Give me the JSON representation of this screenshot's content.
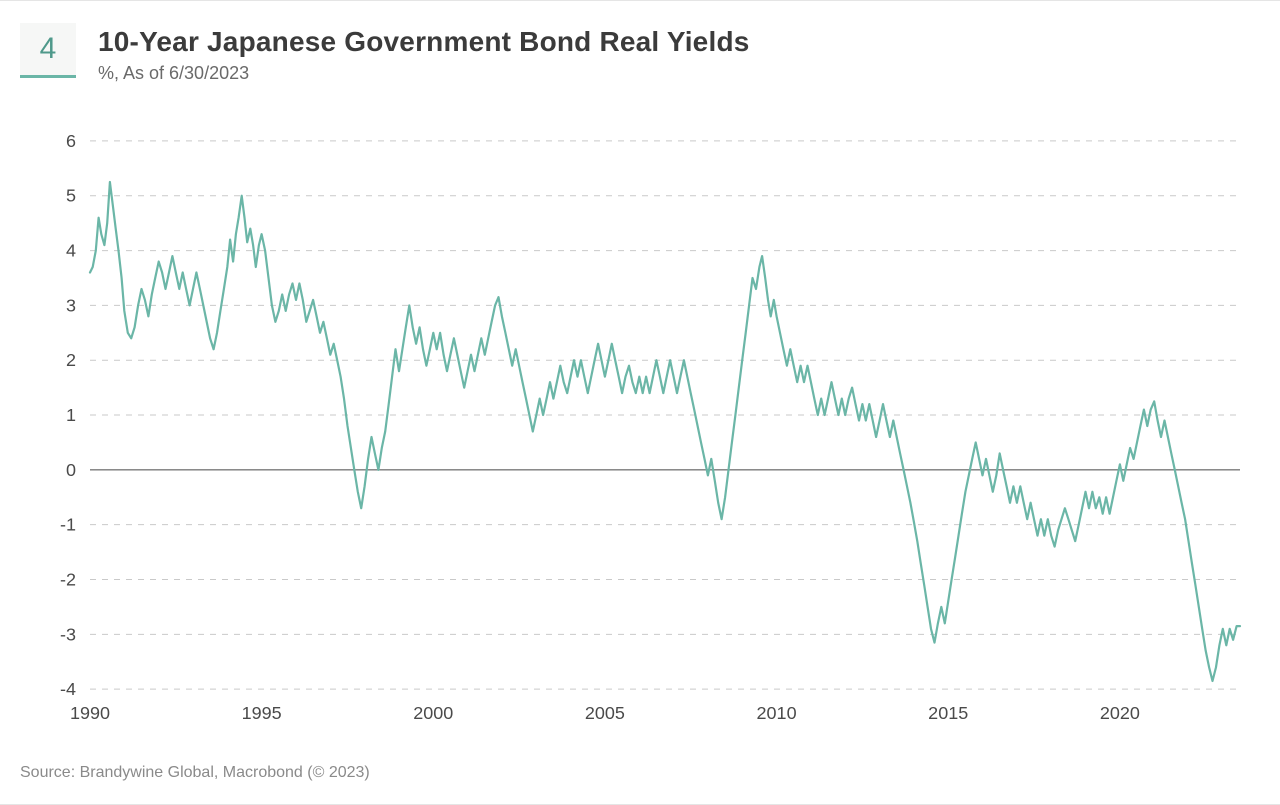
{
  "header": {
    "badge_number": "4",
    "title": "10-Year Japanese Government Bond Real Yields",
    "subtitle": "%, As of 6/30/2023"
  },
  "source": "Source: Brandywine Global, Macrobond (© 2023)",
  "chart": {
    "type": "line",
    "background_color": "#ffffff",
    "grid_color": "#c9c9c9",
    "zero_line_color": "#7a7a7a",
    "line_color": "#6bb6a7",
    "line_width": 2.2,
    "axis_label_color": "#4a4a4a",
    "axis_label_fontsize": 18,
    "xlim": [
      1990,
      2023.5
    ],
    "ylim": [
      -4,
      6
    ],
    "xticks": [
      1990,
      1995,
      2000,
      2005,
      2010,
      2015,
      2020
    ],
    "yticks": [
      -4,
      -3,
      -2,
      -1,
      0,
      1,
      2,
      3,
      4,
      5,
      6
    ],
    "series": [
      {
        "x": 1990.0,
        "y": 3.6
      },
      {
        "x": 1990.08,
        "y": 3.7
      },
      {
        "x": 1990.17,
        "y": 4.0
      },
      {
        "x": 1990.25,
        "y": 4.6
      },
      {
        "x": 1990.33,
        "y": 4.3
      },
      {
        "x": 1990.42,
        "y": 4.1
      },
      {
        "x": 1990.5,
        "y": 4.5
      },
      {
        "x": 1990.58,
        "y": 5.25
      },
      {
        "x": 1990.67,
        "y": 4.8
      },
      {
        "x": 1990.75,
        "y": 4.4
      },
      {
        "x": 1990.83,
        "y": 4.0
      },
      {
        "x": 1990.92,
        "y": 3.5
      },
      {
        "x": 1991.0,
        "y": 2.9
      },
      {
        "x": 1991.1,
        "y": 2.5
      },
      {
        "x": 1991.2,
        "y": 2.4
      },
      {
        "x": 1991.3,
        "y": 2.6
      },
      {
        "x": 1991.4,
        "y": 3.0
      },
      {
        "x": 1991.5,
        "y": 3.3
      },
      {
        "x": 1991.6,
        "y": 3.1
      },
      {
        "x": 1991.7,
        "y": 2.8
      },
      {
        "x": 1991.8,
        "y": 3.2
      },
      {
        "x": 1991.9,
        "y": 3.5
      },
      {
        "x": 1992.0,
        "y": 3.8
      },
      {
        "x": 1992.1,
        "y": 3.6
      },
      {
        "x": 1992.2,
        "y": 3.3
      },
      {
        "x": 1992.3,
        "y": 3.6
      },
      {
        "x": 1992.4,
        "y": 3.9
      },
      {
        "x": 1992.5,
        "y": 3.6
      },
      {
        "x": 1992.6,
        "y": 3.3
      },
      {
        "x": 1992.7,
        "y": 3.6
      },
      {
        "x": 1992.8,
        "y": 3.3
      },
      {
        "x": 1992.9,
        "y": 3.0
      },
      {
        "x": 1993.0,
        "y": 3.3
      },
      {
        "x": 1993.1,
        "y": 3.6
      },
      {
        "x": 1993.2,
        "y": 3.3
      },
      {
        "x": 1993.3,
        "y": 3.0
      },
      {
        "x": 1993.4,
        "y": 2.7
      },
      {
        "x": 1993.5,
        "y": 2.4
      },
      {
        "x": 1993.6,
        "y": 2.2
      },
      {
        "x": 1993.7,
        "y": 2.5
      },
      {
        "x": 1993.8,
        "y": 2.9
      },
      {
        "x": 1993.9,
        "y": 3.3
      },
      {
        "x": 1994.0,
        "y": 3.7
      },
      {
        "x": 1994.08,
        "y": 4.2
      },
      {
        "x": 1994.17,
        "y": 3.8
      },
      {
        "x": 1994.25,
        "y": 4.3
      },
      {
        "x": 1994.33,
        "y": 4.6
      },
      {
        "x": 1994.42,
        "y": 5.0
      },
      {
        "x": 1994.5,
        "y": 4.6
      },
      {
        "x": 1994.58,
        "y": 4.15
      },
      {
        "x": 1994.67,
        "y": 4.4
      },
      {
        "x": 1994.75,
        "y": 4.1
      },
      {
        "x": 1994.83,
        "y": 3.7
      },
      {
        "x": 1994.92,
        "y": 4.1
      },
      {
        "x": 1995.0,
        "y": 4.3
      },
      {
        "x": 1995.1,
        "y": 4.0
      },
      {
        "x": 1995.2,
        "y": 3.5
      },
      {
        "x": 1995.3,
        "y": 3.0
      },
      {
        "x": 1995.4,
        "y": 2.7
      },
      {
        "x": 1995.5,
        "y": 2.9
      },
      {
        "x": 1995.6,
        "y": 3.2
      },
      {
        "x": 1995.7,
        "y": 2.9
      },
      {
        "x": 1995.8,
        "y": 3.2
      },
      {
        "x": 1995.9,
        "y": 3.4
      },
      {
        "x": 1996.0,
        "y": 3.1
      },
      {
        "x": 1996.1,
        "y": 3.4
      },
      {
        "x": 1996.2,
        "y": 3.1
      },
      {
        "x": 1996.3,
        "y": 2.7
      },
      {
        "x": 1996.4,
        "y": 2.9
      },
      {
        "x": 1996.5,
        "y": 3.1
      },
      {
        "x": 1996.6,
        "y": 2.8
      },
      {
        "x": 1996.7,
        "y": 2.5
      },
      {
        "x": 1996.8,
        "y": 2.7
      },
      {
        "x": 1996.9,
        "y": 2.4
      },
      {
        "x": 1997.0,
        "y": 2.1
      },
      {
        "x": 1997.1,
        "y": 2.3
      },
      {
        "x": 1997.2,
        "y": 2.0
      },
      {
        "x": 1997.3,
        "y": 1.7
      },
      {
        "x": 1997.4,
        "y": 1.3
      },
      {
        "x": 1997.5,
        "y": 0.8
      },
      {
        "x": 1997.6,
        "y": 0.4
      },
      {
        "x": 1997.7,
        "y": 0.0
      },
      {
        "x": 1997.8,
        "y": -0.4
      },
      {
        "x": 1997.9,
        "y": -0.7
      },
      {
        "x": 1998.0,
        "y": -0.3
      },
      {
        "x": 1998.1,
        "y": 0.2
      },
      {
        "x": 1998.2,
        "y": 0.6
      },
      {
        "x": 1998.3,
        "y": 0.3
      },
      {
        "x": 1998.4,
        "y": 0.0
      },
      {
        "x": 1998.5,
        "y": 0.4
      },
      {
        "x": 1998.6,
        "y": 0.7
      },
      {
        "x": 1998.7,
        "y": 1.2
      },
      {
        "x": 1998.8,
        "y": 1.7
      },
      {
        "x": 1998.9,
        "y": 2.2
      },
      {
        "x": 1999.0,
        "y": 1.8
      },
      {
        "x": 1999.1,
        "y": 2.2
      },
      {
        "x": 1999.2,
        "y": 2.6
      },
      {
        "x": 1999.3,
        "y": 3.0
      },
      {
        "x": 1999.4,
        "y": 2.6
      },
      {
        "x": 1999.5,
        "y": 2.3
      },
      {
        "x": 1999.6,
        "y": 2.6
      },
      {
        "x": 1999.7,
        "y": 2.2
      },
      {
        "x": 1999.8,
        "y": 1.9
      },
      {
        "x": 1999.9,
        "y": 2.2
      },
      {
        "x": 2000.0,
        "y": 2.5
      },
      {
        "x": 2000.1,
        "y": 2.2
      },
      {
        "x": 2000.2,
        "y": 2.5
      },
      {
        "x": 2000.3,
        "y": 2.1
      },
      {
        "x": 2000.4,
        "y": 1.8
      },
      {
        "x": 2000.5,
        "y": 2.1
      },
      {
        "x": 2000.6,
        "y": 2.4
      },
      {
        "x": 2000.7,
        "y": 2.1
      },
      {
        "x": 2000.8,
        "y": 1.8
      },
      {
        "x": 2000.9,
        "y": 1.5
      },
      {
        "x": 2001.0,
        "y": 1.8
      },
      {
        "x": 2001.1,
        "y": 2.1
      },
      {
        "x": 2001.2,
        "y": 1.8
      },
      {
        "x": 2001.3,
        "y": 2.1
      },
      {
        "x": 2001.4,
        "y": 2.4
      },
      {
        "x": 2001.5,
        "y": 2.1
      },
      {
        "x": 2001.6,
        "y": 2.4
      },
      {
        "x": 2001.7,
        "y": 2.7
      },
      {
        "x": 2001.8,
        "y": 3.0
      },
      {
        "x": 2001.9,
        "y": 3.15
      },
      {
        "x": 2002.0,
        "y": 2.8
      },
      {
        "x": 2002.1,
        "y": 2.5
      },
      {
        "x": 2002.2,
        "y": 2.2
      },
      {
        "x": 2002.3,
        "y": 1.9
      },
      {
        "x": 2002.4,
        "y": 2.2
      },
      {
        "x": 2002.5,
        "y": 1.9
      },
      {
        "x": 2002.6,
        "y": 1.6
      },
      {
        "x": 2002.7,
        "y": 1.3
      },
      {
        "x": 2002.8,
        "y": 1.0
      },
      {
        "x": 2002.9,
        "y": 0.7
      },
      {
        "x": 2003.0,
        "y": 1.0
      },
      {
        "x": 2003.1,
        "y": 1.3
      },
      {
        "x": 2003.2,
        "y": 1.0
      },
      {
        "x": 2003.3,
        "y": 1.3
      },
      {
        "x": 2003.4,
        "y": 1.6
      },
      {
        "x": 2003.5,
        "y": 1.3
      },
      {
        "x": 2003.6,
        "y": 1.6
      },
      {
        "x": 2003.7,
        "y": 1.9
      },
      {
        "x": 2003.8,
        "y": 1.6
      },
      {
        "x": 2003.9,
        "y": 1.4
      },
      {
        "x": 2004.0,
        "y": 1.7
      },
      {
        "x": 2004.1,
        "y": 2.0
      },
      {
        "x": 2004.2,
        "y": 1.7
      },
      {
        "x": 2004.3,
        "y": 2.0
      },
      {
        "x": 2004.4,
        "y": 1.7
      },
      {
        "x": 2004.5,
        "y": 1.4
      },
      {
        "x": 2004.6,
        "y": 1.7
      },
      {
        "x": 2004.7,
        "y": 2.0
      },
      {
        "x": 2004.8,
        "y": 2.3
      },
      {
        "x": 2004.9,
        "y": 2.0
      },
      {
        "x": 2005.0,
        "y": 1.7
      },
      {
        "x": 2005.1,
        "y": 2.0
      },
      {
        "x": 2005.2,
        "y": 2.3
      },
      {
        "x": 2005.3,
        "y": 2.0
      },
      {
        "x": 2005.4,
        "y": 1.7
      },
      {
        "x": 2005.5,
        "y": 1.4
      },
      {
        "x": 2005.6,
        "y": 1.7
      },
      {
        "x": 2005.7,
        "y": 1.9
      },
      {
        "x": 2005.8,
        "y": 1.6
      },
      {
        "x": 2005.9,
        "y": 1.4
      },
      {
        "x": 2006.0,
        "y": 1.7
      },
      {
        "x": 2006.1,
        "y": 1.4
      },
      {
        "x": 2006.2,
        "y": 1.7
      },
      {
        "x": 2006.3,
        "y": 1.4
      },
      {
        "x": 2006.4,
        "y": 1.7
      },
      {
        "x": 2006.5,
        "y": 2.0
      },
      {
        "x": 2006.6,
        "y": 1.7
      },
      {
        "x": 2006.7,
        "y": 1.4
      },
      {
        "x": 2006.8,
        "y": 1.7
      },
      {
        "x": 2006.9,
        "y": 2.0
      },
      {
        "x": 2007.0,
        "y": 1.7
      },
      {
        "x": 2007.1,
        "y": 1.4
      },
      {
        "x": 2007.2,
        "y": 1.7
      },
      {
        "x": 2007.3,
        "y": 2.0
      },
      {
        "x": 2007.4,
        "y": 1.7
      },
      {
        "x": 2007.5,
        "y": 1.4
      },
      {
        "x": 2007.6,
        "y": 1.1
      },
      {
        "x": 2007.7,
        "y": 0.8
      },
      {
        "x": 2007.8,
        "y": 0.5
      },
      {
        "x": 2007.9,
        "y": 0.2
      },
      {
        "x": 2008.0,
        "y": -0.1
      },
      {
        "x": 2008.1,
        "y": 0.2
      },
      {
        "x": 2008.2,
        "y": -0.2
      },
      {
        "x": 2008.3,
        "y": -0.6
      },
      {
        "x": 2008.4,
        "y": -0.9
      },
      {
        "x": 2008.5,
        "y": -0.5
      },
      {
        "x": 2008.6,
        "y": 0.0
      },
      {
        "x": 2008.7,
        "y": 0.5
      },
      {
        "x": 2008.8,
        "y": 1.0
      },
      {
        "x": 2008.9,
        "y": 1.5
      },
      {
        "x": 2009.0,
        "y": 2.0
      },
      {
        "x": 2009.1,
        "y": 2.5
      },
      {
        "x": 2009.2,
        "y": 3.0
      },
      {
        "x": 2009.3,
        "y": 3.5
      },
      {
        "x": 2009.4,
        "y": 3.3
      },
      {
        "x": 2009.5,
        "y": 3.7
      },
      {
        "x": 2009.58,
        "y": 3.9
      },
      {
        "x": 2009.67,
        "y": 3.5
      },
      {
        "x": 2009.75,
        "y": 3.1
      },
      {
        "x": 2009.83,
        "y": 2.8
      },
      {
        "x": 2009.92,
        "y": 3.1
      },
      {
        "x": 2010.0,
        "y": 2.8
      },
      {
        "x": 2010.1,
        "y": 2.5
      },
      {
        "x": 2010.2,
        "y": 2.2
      },
      {
        "x": 2010.3,
        "y": 1.9
      },
      {
        "x": 2010.4,
        "y": 2.2
      },
      {
        "x": 2010.5,
        "y": 1.9
      },
      {
        "x": 2010.6,
        "y": 1.6
      },
      {
        "x": 2010.7,
        "y": 1.9
      },
      {
        "x": 2010.8,
        "y": 1.6
      },
      {
        "x": 2010.9,
        "y": 1.9
      },
      {
        "x": 2011.0,
        "y": 1.6
      },
      {
        "x": 2011.1,
        "y": 1.3
      },
      {
        "x": 2011.2,
        "y": 1.0
      },
      {
        "x": 2011.3,
        "y": 1.3
      },
      {
        "x": 2011.4,
        "y": 1.0
      },
      {
        "x": 2011.5,
        "y": 1.3
      },
      {
        "x": 2011.6,
        "y": 1.6
      },
      {
        "x": 2011.7,
        "y": 1.3
      },
      {
        "x": 2011.8,
        "y": 1.0
      },
      {
        "x": 2011.9,
        "y": 1.3
      },
      {
        "x": 2012.0,
        "y": 1.0
      },
      {
        "x": 2012.1,
        "y": 1.3
      },
      {
        "x": 2012.2,
        "y": 1.5
      },
      {
        "x": 2012.3,
        "y": 1.2
      },
      {
        "x": 2012.4,
        "y": 0.9
      },
      {
        "x": 2012.5,
        "y": 1.2
      },
      {
        "x": 2012.6,
        "y": 0.9
      },
      {
        "x": 2012.7,
        "y": 1.2
      },
      {
        "x": 2012.8,
        "y": 0.9
      },
      {
        "x": 2012.9,
        "y": 0.6
      },
      {
        "x": 2013.0,
        "y": 0.9
      },
      {
        "x": 2013.1,
        "y": 1.2
      },
      {
        "x": 2013.2,
        "y": 0.9
      },
      {
        "x": 2013.3,
        "y": 0.6
      },
      {
        "x": 2013.4,
        "y": 0.9
      },
      {
        "x": 2013.5,
        "y": 0.6
      },
      {
        "x": 2013.6,
        "y": 0.3
      },
      {
        "x": 2013.7,
        "y": 0.0
      },
      {
        "x": 2013.8,
        "y": -0.3
      },
      {
        "x": 2013.9,
        "y": -0.6
      },
      {
        "x": 2014.0,
        "y": -0.95
      },
      {
        "x": 2014.1,
        "y": -1.3
      },
      {
        "x": 2014.2,
        "y": -1.7
      },
      {
        "x": 2014.3,
        "y": -2.1
      },
      {
        "x": 2014.4,
        "y": -2.5
      },
      {
        "x": 2014.5,
        "y": -2.9
      },
      {
        "x": 2014.6,
        "y": -3.15
      },
      {
        "x": 2014.7,
        "y": -2.8
      },
      {
        "x": 2014.8,
        "y": -2.5
      },
      {
        "x": 2014.9,
        "y": -2.8
      },
      {
        "x": 2015.0,
        "y": -2.4
      },
      {
        "x": 2015.1,
        "y": -2.0
      },
      {
        "x": 2015.2,
        "y": -1.6
      },
      {
        "x": 2015.3,
        "y": -1.2
      },
      {
        "x": 2015.4,
        "y": -0.8
      },
      {
        "x": 2015.5,
        "y": -0.4
      },
      {
        "x": 2015.6,
        "y": -0.1
      },
      {
        "x": 2015.7,
        "y": 0.2
      },
      {
        "x": 2015.8,
        "y": 0.5
      },
      {
        "x": 2015.9,
        "y": 0.2
      },
      {
        "x": 2016.0,
        "y": -0.1
      },
      {
        "x": 2016.1,
        "y": 0.2
      },
      {
        "x": 2016.2,
        "y": -0.1
      },
      {
        "x": 2016.3,
        "y": -0.4
      },
      {
        "x": 2016.4,
        "y": -0.1
      },
      {
        "x": 2016.5,
        "y": 0.3
      },
      {
        "x": 2016.6,
        "y": 0.0
      },
      {
        "x": 2016.7,
        "y": -0.3
      },
      {
        "x": 2016.8,
        "y": -0.6
      },
      {
        "x": 2016.9,
        "y": -0.3
      },
      {
        "x": 2017.0,
        "y": -0.6
      },
      {
        "x": 2017.1,
        "y": -0.3
      },
      {
        "x": 2017.2,
        "y": -0.6
      },
      {
        "x": 2017.3,
        "y": -0.9
      },
      {
        "x": 2017.4,
        "y": -0.6
      },
      {
        "x": 2017.5,
        "y": -0.9
      },
      {
        "x": 2017.6,
        "y": -1.2
      },
      {
        "x": 2017.7,
        "y": -0.9
      },
      {
        "x": 2017.8,
        "y": -1.2
      },
      {
        "x": 2017.9,
        "y": -0.9
      },
      {
        "x": 2018.0,
        "y": -1.2
      },
      {
        "x": 2018.1,
        "y": -1.4
      },
      {
        "x": 2018.2,
        "y": -1.1
      },
      {
        "x": 2018.3,
        "y": -0.9
      },
      {
        "x": 2018.4,
        "y": -0.7
      },
      {
        "x": 2018.5,
        "y": -0.9
      },
      {
        "x": 2018.6,
        "y": -1.1
      },
      {
        "x": 2018.7,
        "y": -1.3
      },
      {
        "x": 2018.8,
        "y": -1.0
      },
      {
        "x": 2018.9,
        "y": -0.7
      },
      {
        "x": 2019.0,
        "y": -0.4
      },
      {
        "x": 2019.1,
        "y": -0.7
      },
      {
        "x": 2019.2,
        "y": -0.4
      },
      {
        "x": 2019.3,
        "y": -0.7
      },
      {
        "x": 2019.4,
        "y": -0.5
      },
      {
        "x": 2019.5,
        "y": -0.8
      },
      {
        "x": 2019.6,
        "y": -0.5
      },
      {
        "x": 2019.7,
        "y": -0.8
      },
      {
        "x": 2019.8,
        "y": -0.5
      },
      {
        "x": 2019.9,
        "y": -0.2
      },
      {
        "x": 2020.0,
        "y": 0.1
      },
      {
        "x": 2020.1,
        "y": -0.2
      },
      {
        "x": 2020.2,
        "y": 0.1
      },
      {
        "x": 2020.3,
        "y": 0.4
      },
      {
        "x": 2020.4,
        "y": 0.2
      },
      {
        "x": 2020.5,
        "y": 0.5
      },
      {
        "x": 2020.6,
        "y": 0.8
      },
      {
        "x": 2020.7,
        "y": 1.1
      },
      {
        "x": 2020.8,
        "y": 0.8
      },
      {
        "x": 2020.9,
        "y": 1.1
      },
      {
        "x": 2021.0,
        "y": 1.25
      },
      {
        "x": 2021.1,
        "y": 0.9
      },
      {
        "x": 2021.2,
        "y": 0.6
      },
      {
        "x": 2021.3,
        "y": 0.9
      },
      {
        "x": 2021.4,
        "y": 0.6
      },
      {
        "x": 2021.5,
        "y": 0.3
      },
      {
        "x": 2021.6,
        "y": 0.0
      },
      {
        "x": 2021.7,
        "y": -0.3
      },
      {
        "x": 2021.8,
        "y": -0.6
      },
      {
        "x": 2021.9,
        "y": -0.9
      },
      {
        "x": 2022.0,
        "y": -1.3
      },
      {
        "x": 2022.1,
        "y": -1.7
      },
      {
        "x": 2022.2,
        "y": -2.1
      },
      {
        "x": 2022.3,
        "y": -2.5
      },
      {
        "x": 2022.4,
        "y": -2.9
      },
      {
        "x": 2022.5,
        "y": -3.3
      },
      {
        "x": 2022.6,
        "y": -3.6
      },
      {
        "x": 2022.7,
        "y": -3.85
      },
      {
        "x": 2022.8,
        "y": -3.6
      },
      {
        "x": 2022.9,
        "y": -3.2
      },
      {
        "x": 2023.0,
        "y": -2.9
      },
      {
        "x": 2023.1,
        "y": -3.2
      },
      {
        "x": 2023.2,
        "y": -2.9
      },
      {
        "x": 2023.3,
        "y": -3.1
      },
      {
        "x": 2023.4,
        "y": -2.85
      },
      {
        "x": 2023.5,
        "y": -2.85
      }
    ]
  }
}
